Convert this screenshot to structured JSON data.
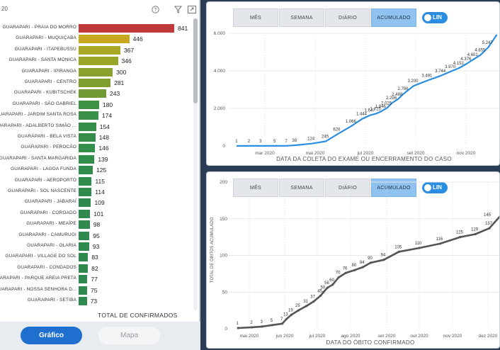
{
  "left_panel": {
    "header_text": "20",
    "help_icon": "help-circle-icon",
    "filter_icon": "filter-icon",
    "expand_icon": "expand-icon",
    "axis_title": "TOTAL DE CONFIRMADOS",
    "footer": {
      "grafico_label": "Gráfico",
      "mapa_label": "Mapa"
    },
    "colors": {
      "top": "#c0393b",
      "mid": "#c9a81f",
      "low": "#2e8b4d"
    }
  },
  "bars": [
    {
      "label": "GUARAPARI - PRAIA DO MORRO",
      "value": 841,
      "color": "#c0393b"
    },
    {
      "label": "GUARAPARI - MUQUIÇABA",
      "value": 446,
      "color": "#c9a81f"
    },
    {
      "label": "GUARAPARI - ITAPEBUSSU",
      "value": 367,
      "color": "#a8a824"
    },
    {
      "label": "GUARAPARI - SANTA MONICA",
      "value": 346,
      "color": "#9aa628"
    },
    {
      "label": "GUARAPARI - IPIRANGA",
      "value": 300,
      "color": "#8aa22c"
    },
    {
      "label": "GUARAPARI - CENTRO",
      "value": 281,
      "color": "#7e9f30"
    },
    {
      "label": "GUARAPARI - KUBITSCHEK",
      "value": 243,
      "color": "#6f9a34"
    },
    {
      "label": "GUARAPARI - SÃO GABRIEL",
      "value": 180,
      "color": "#3f9145"
    },
    {
      "label": "GUARAPARI - JARDIM SANTA ROSA",
      "value": 174,
      "color": "#3a9047"
    },
    {
      "label": "GUARAPARI - ADALBERTO SIMÃO ...",
      "value": 154,
      "color": "#368f48"
    },
    {
      "label": "GUARAPARI - BELA VISTA",
      "value": 148,
      "color": "#348e49"
    },
    {
      "label": "GUARAPARI - PEROCÃO",
      "value": 146,
      "color": "#338e49"
    },
    {
      "label": "GUARAPARI - SANTA MARGARIDA",
      "value": 139,
      "color": "#318d4a"
    },
    {
      "label": "GUARAPARI - LAGOA FUNDA",
      "value": 125,
      "color": "#2f8c4b"
    },
    {
      "label": "GUARAPARI - AEROPORTO",
      "value": 115,
      "color": "#2e8b4c"
    },
    {
      "label": "GUARAPARI - SOL NASCENTE",
      "value": 114,
      "color": "#2e8b4c"
    },
    {
      "label": "GUARAPARI - JABARAÍ",
      "value": 109,
      "color": "#2e8b4d"
    },
    {
      "label": "GUARAPARI - COROADO",
      "value": 101,
      "color": "#2e8b4d"
    },
    {
      "label": "GUARAPARI - MEAÍPE",
      "value": 98,
      "color": "#2e8b4d"
    },
    {
      "label": "GUARAPARI - CAMURUGI",
      "value": 95,
      "color": "#2e8b4d"
    },
    {
      "label": "GUARAPARI - OLARIA",
      "value": 93,
      "color": "#2e8b4d"
    },
    {
      "label": "GUARAPARI - VILLAGE DO SOL",
      "value": 83,
      "color": "#2e8b4d"
    },
    {
      "label": "GUARAPARI - CONDADOS",
      "value": 82,
      "color": "#2e8b4d"
    },
    {
      "label": "GUARAPARI - PARQUE AREIA PRETA",
      "value": 77,
      "color": "#2e8b4d"
    },
    {
      "label": "GUARAPARI - NOSSA SENHORA D...",
      "value": 75,
      "color": "#2e8b4d"
    },
    {
      "label": "GUARAPARI - SETIBA",
      "value": 73,
      "color": "#2e8b4d"
    }
  ],
  "top_chart": {
    "buttons": [
      "MÊS",
      "SEMANA",
      "DIÁRIO",
      "ACUMULADO"
    ],
    "active_button": "ACUMULADO",
    "lin_label": "LIN",
    "xlabel": "DATA DA COLETA DO EXAME OU ENCERRAMENTO DO CASO",
    "y_ticks": [
      "0",
      "2.000",
      "4.000",
      "6.000"
    ],
    "x_ticks": [
      "mar 2020",
      "mai 2020",
      "jul 2020",
      "set 2020",
      "nov 2020"
    ],
    "line_color": "#2b8de0"
  },
  "bottom_chart": {
    "buttons": [
      "MÊS",
      "SEMANA",
      "DIÁRIO",
      "ACUMULADO"
    ],
    "active_button": "ACUMULADO",
    "lin_label": "LIN",
    "xlabel": "DATA DO ÓBITO CONFIRMADO",
    "ylabel": "TOTAL DE ÓBITOS ACUMULADO",
    "y_ticks": [
      "0",
      "50",
      "100",
      "150",
      "200"
    ],
    "x_ticks": [
      "mai 2020",
      "jun 2020",
      "jul 2020",
      "ago 2020",
      "set 2020",
      "out 2020",
      "nov 2020",
      "dez 2020"
    ],
    "line_color": "#555555"
  },
  "chart_data": [
    {
      "type": "bar",
      "xlabel": "TOTAL DE CONFIRMADOS",
      "categories": [
        "GUARAPARI - PRAIA DO MORRO",
        "GUARAPARI - MUQUIÇABA",
        "GUARAPARI - ITAPEBUSSU",
        "GUARAPARI - SANTA MONICA",
        "GUARAPARI - IPIRANGA",
        "GUARAPARI - CENTRO",
        "GUARAPARI - KUBITSCHEK",
        "GUARAPARI - SÃO GABRIEL",
        "GUARAPARI - JARDIM SANTA ROSA",
        "GUARAPARI - ADALBERTO SIMÃO ...",
        "GUARAPARI - BELA VISTA",
        "GUARAPARI - PEROCÃO",
        "GUARAPARI - SANTA MARGARIDA",
        "GUARAPARI - LAGOA FUNDA",
        "GUARAPARI - AEROPORTO",
        "GUARAPARI - SOL NASCENTE",
        "GUARAPARI - JABARAÍ",
        "GUARAPARI - COROADO",
        "GUARAPARI - MEAÍPE",
        "GUARAPARI - CAMURUGI",
        "GUARAPARI - OLARIA",
        "GUARAPARI - VILLAGE DO SOL",
        "GUARAPARI - CONDADOS",
        "GUARAPARI - PARQUE AREIA PRETA",
        "GUARAPARI - NOSSA SENHORA D...",
        "GUARAPARI - SETIBA"
      ],
      "values": [
        841,
        446,
        367,
        346,
        300,
        281,
        243,
        180,
        174,
        154,
        148,
        146,
        139,
        125,
        115,
        114,
        109,
        101,
        98,
        95,
        93,
        83,
        82,
        77,
        75,
        73
      ]
    },
    {
      "type": "line",
      "xlabel": "DATA DA COLETA DO EXAME OU ENCERRAMENTO DO CASO",
      "ylim": [
        0,
        6000
      ],
      "x": [
        "2020-02-05",
        "2020-02-20",
        "2020-03-05",
        "2020-03-22",
        "2020-04-05",
        "2020-04-15",
        "2020-05-05",
        "2020-05-22",
        "2020-06-05",
        "2020-06-22",
        "2020-07-05",
        "2020-07-15",
        "2020-07-22",
        "2020-07-28",
        "2020-08-04",
        "2020-08-10",
        "2020-08-17",
        "2020-08-24",
        "2020-09-05",
        "2020-09-22",
        "2020-10-08",
        "2020-10-20",
        "2020-10-30",
        "2020-11-08",
        "2020-11-16",
        "2020-11-25",
        "2020-12-04",
        "2020-12-14"
      ],
      "values": [
        1,
        2,
        3,
        5,
        7,
        38,
        124,
        245,
        626,
        1066,
        1444,
        1647,
        1725,
        1846,
        2025,
        2296,
        2488,
        2786,
        3200,
        3491,
        3744,
        3970,
        4152,
        4376,
        4601,
        4855,
        5247,
        5900
      ],
      "point_labels": [
        "1",
        "2",
        "3",
        "5",
        "7",
        "38",
        "124",
        "245",
        "626",
        "1.066",
        "1.444",
        "1.647",
        "1.725",
        "1.846",
        "2.025",
        "2.296",
        "2.488",
        "2.786",
        "3.200",
        "3.491",
        "3.744",
        "3.970",
        "4.152",
        "4.376",
        "4.601",
        "4.855",
        "5.247",
        ""
      ]
    },
    {
      "type": "line",
      "xlabel": "DATA DO ÓBITO CONFIRMADO",
      "ylabel": "TOTAL DE ÓBITOS ACUMULADO",
      "ylim": [
        0,
        200
      ],
      "x": [
        "2020-04-18",
        "2020-05-02",
        "2020-05-12",
        "2020-05-22",
        "2020-06-01",
        "2020-06-05",
        "2020-06-10",
        "2020-06-17",
        "2020-06-25",
        "2020-07-02",
        "2020-07-09",
        "2020-07-12",
        "2020-07-16",
        "2020-07-21",
        "2020-07-27",
        "2020-08-03",
        "2020-08-12",
        "2020-08-20",
        "2020-08-28",
        "2020-09-10",
        "2020-09-25",
        "2020-10-15",
        "2020-11-05",
        "2020-11-25",
        "2020-12-10",
        "2020-12-24"
      ],
      "values": [
        1,
        2,
        3,
        5,
        7,
        13,
        19,
        25,
        31,
        37,
        45,
        50,
        56,
        60,
        70,
        76,
        80,
        84,
        90,
        94,
        105,
        110,
        116,
        125,
        129,
        137
      ],
      "point_labels": [
        "1",
        "2",
        "3",
        "5",
        "7",
        "13",
        "19",
        "25",
        "31",
        "37",
        "45",
        "50",
        "56",
        "60",
        "70",
        "76",
        "80",
        "84",
        "90",
        "94",
        "105",
        "110",
        "116",
        "125",
        "129",
        "137"
      ],
      "extra_labels": [
        "145"
      ]
    }
  ]
}
